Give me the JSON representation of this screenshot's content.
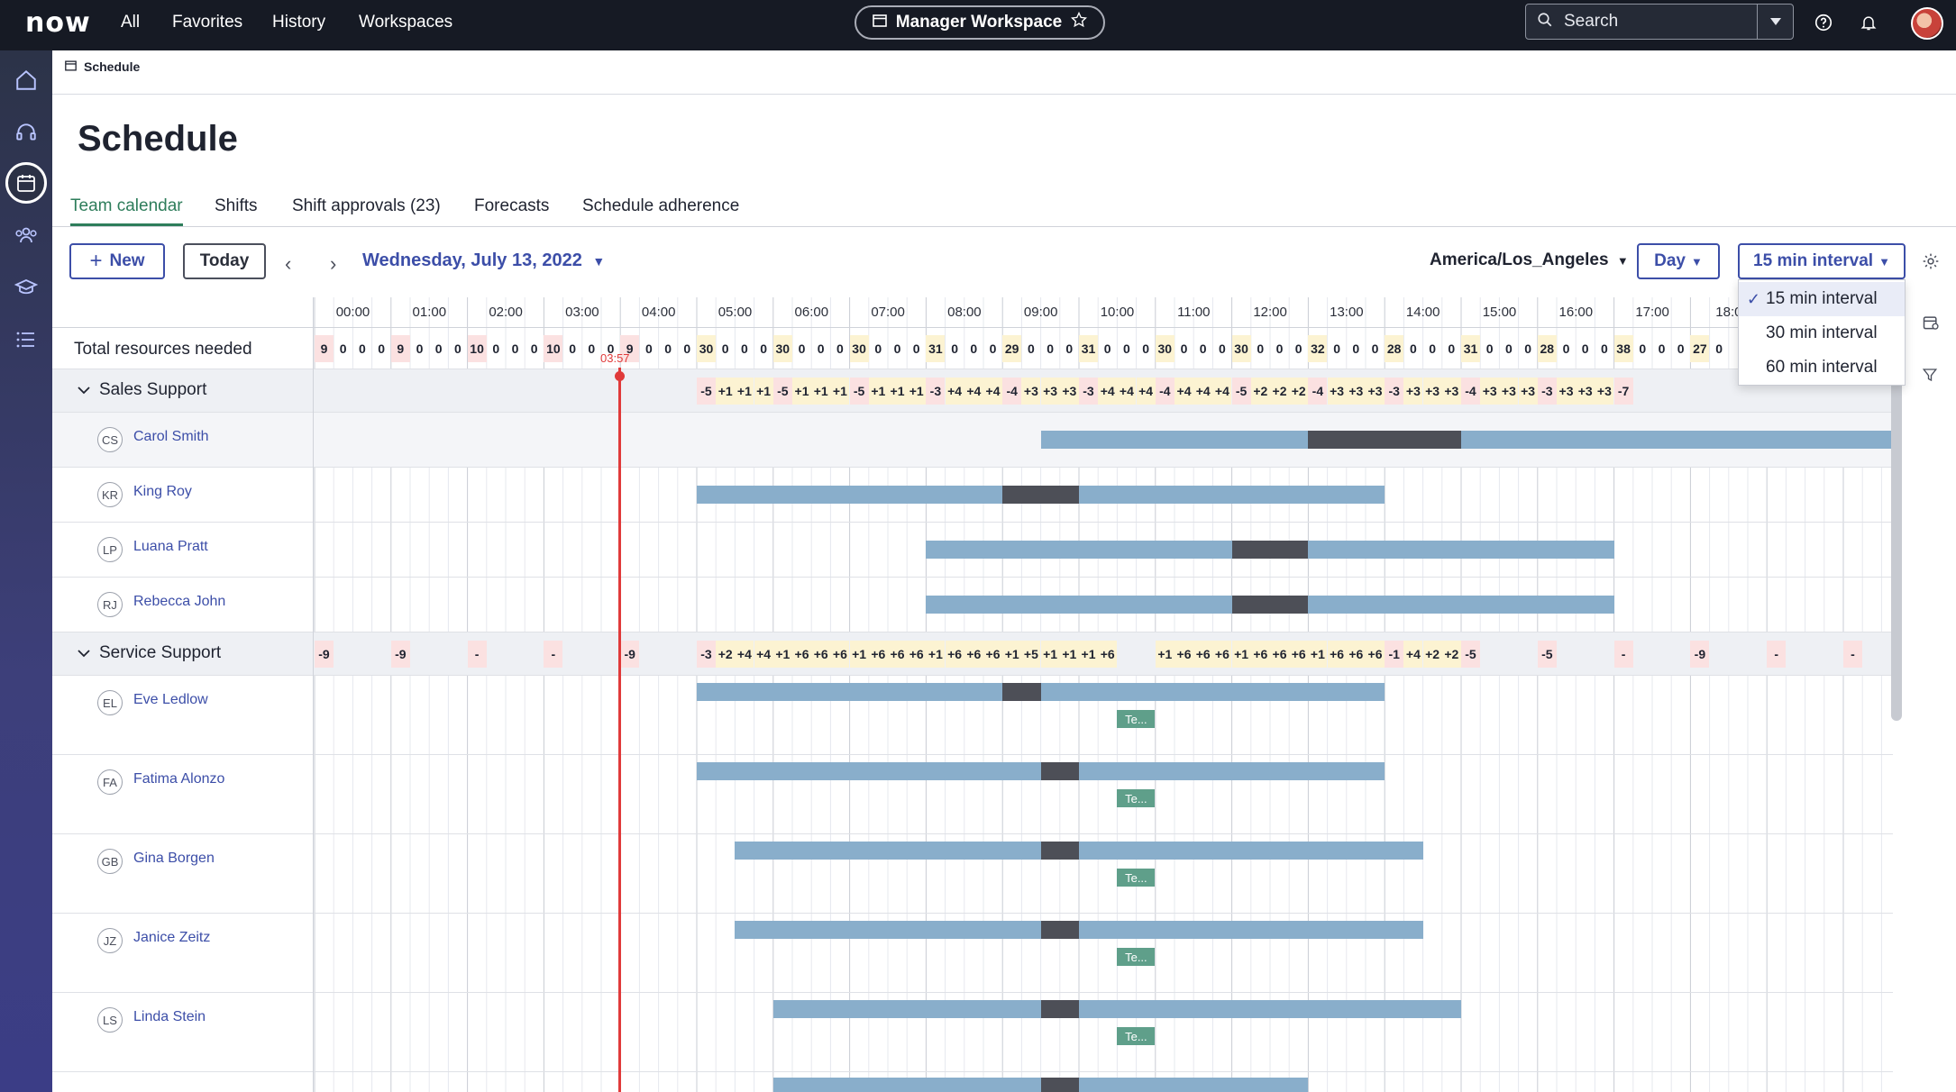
{
  "topnav": {
    "logo": "now",
    "links": [
      "All",
      "Favorites",
      "History",
      "Workspaces"
    ],
    "workspace": "Manager Workspace",
    "search_label": "Search"
  },
  "breadcrumb": "Schedule",
  "page_title": "Schedule",
  "tabs": [
    "Team calendar",
    "Shifts",
    "Shift approvals (23)",
    "Forecasts",
    "Schedule adherence"
  ],
  "toolbar": {
    "new_label": "New",
    "today_label": "Today",
    "date_label": "Wednesday, July 13, 2022",
    "timezone": "America/Los_Angeles",
    "view_label": "Day",
    "interval_label": "15 min interval"
  },
  "interval_options": [
    {
      "label": "15 min interval",
      "selected": true
    },
    {
      "label": "30 min interval",
      "selected": false
    },
    {
      "label": "60 min interval",
      "selected": false
    }
  ],
  "hours": [
    "00:00",
    "01:00",
    "02:00",
    "03:00",
    "04:00",
    "05:00",
    "06:00",
    "07:00",
    "08:00",
    "09:00",
    "10:00",
    "11:00",
    "12:00",
    "13:00",
    "14:00",
    "15:00",
    "16:00",
    "17:00",
    "18:0"
  ],
  "current_time": "03:57",
  "total_row": {
    "label": "Total resources needed",
    "cells": [
      "9",
      "0",
      "0",
      "0",
      "9",
      "0",
      "0",
      "0",
      "10",
      "0",
      "0",
      "0",
      "10",
      "0",
      "0",
      "0",
      "9",
      "0",
      "0",
      "0",
      "30",
      "0",
      "0",
      "0",
      "30",
      "0",
      "0",
      "0",
      "30",
      "0",
      "0",
      "0",
      "31",
      "0",
      "0",
      "0",
      "29",
      "0",
      "0",
      "0",
      "31",
      "0",
      "0",
      "0",
      "30",
      "0",
      "0",
      "0",
      "30",
      "0",
      "0",
      "0",
      "32",
      "0",
      "0",
      "0",
      "28",
      "0",
      "0",
      "0",
      "31",
      "0",
      "0",
      "0",
      "28",
      "0",
      "0",
      "0",
      "38",
      "0",
      "0",
      "0",
      "27",
      "0"
    ]
  },
  "groups": [
    {
      "name": "Sales Support",
      "cells": [
        "",
        "",
        "",
        "",
        "",
        "",
        "",
        "",
        "",
        "",
        "",
        "",
        "",
        "",
        "",
        "",
        "",
        "",
        "",
        "",
        "-5",
        "+1",
        "+1",
        "+1",
        "-5",
        "+1",
        "+1",
        "+1",
        "-5",
        "+1",
        "+1",
        "+1",
        "-3",
        "+4",
        "+4",
        "+4",
        "-4",
        "+3",
        "+3",
        "+3",
        "-3",
        "+4",
        "+4",
        "+4",
        "-4",
        "+4",
        "+4",
        "+4",
        "-5",
        "+2",
        "+2",
        "+2",
        "-4",
        "+3",
        "+3",
        "+3",
        "-3",
        "+3",
        "+3",
        "+3",
        "-4",
        "+3",
        "+3",
        "+3",
        "-3",
        "+3",
        "+3",
        "+3",
        "-7"
      ],
      "people": [
        {
          "initials": "CS",
          "name": "Carol Smith"
        },
        {
          "initials": "KR",
          "name": "King Roy"
        },
        {
          "initials": "LP",
          "name": "Luana Pratt"
        },
        {
          "initials": "RJ",
          "name": "Rebecca John"
        }
      ]
    },
    {
      "name": "Service Support",
      "cells": [
        "-9",
        "",
        "",
        "",
        "-9",
        "",
        "",
        "",
        "-",
        "",
        "",
        "",
        "-",
        "",
        "",
        "",
        "-9",
        "",
        "",
        "",
        "-3",
        "+2",
        "+4",
        "+4",
        "+1",
        "+6",
        "+6",
        "+6",
        "+1",
        "+6",
        "+6",
        "+6",
        "+1",
        "+6",
        "+6",
        "+6",
        "+1",
        "+5",
        "+1",
        "+1",
        "+1",
        "+6",
        "",
        "",
        "+1",
        "+6",
        "+6",
        "+6",
        "+1",
        "+6",
        "+6",
        "+6",
        "+1",
        "+6",
        "+6",
        "+6",
        "-1",
        "+4",
        "+2",
        "+2",
        "-5",
        "",
        "",
        "",
        "-5",
        "",
        "",
        "",
        "-",
        "",
        "",
        "",
        "-9",
        "",
        "",
        "",
        "-",
        "",
        "",
        "",
        "-"
      ],
      "people": [
        {
          "initials": "EL",
          "name": "Eve Ledlow",
          "tag": "Te..."
        },
        {
          "initials": "FA",
          "name": "Fatima Alonzo",
          "tag": "Te..."
        },
        {
          "initials": "GB",
          "name": "Gina Borgen",
          "tag": "Te..."
        },
        {
          "initials": "JZ",
          "name": "Janice Zeitz",
          "tag": "Te..."
        },
        {
          "initials": "LS",
          "name": "Linda Stein",
          "tag": "Te..."
        }
      ]
    }
  ],
  "colors": {
    "accent": "#3c4ea8",
    "tab_active": "#2e7d5b",
    "shift": "#89aecb",
    "break": "#4d4f57",
    "team_tag": "#5f9f8a",
    "now_line": "#e03a3a",
    "understaffed": "#fbe1e1",
    "staffed": "#fcf3d2"
  }
}
